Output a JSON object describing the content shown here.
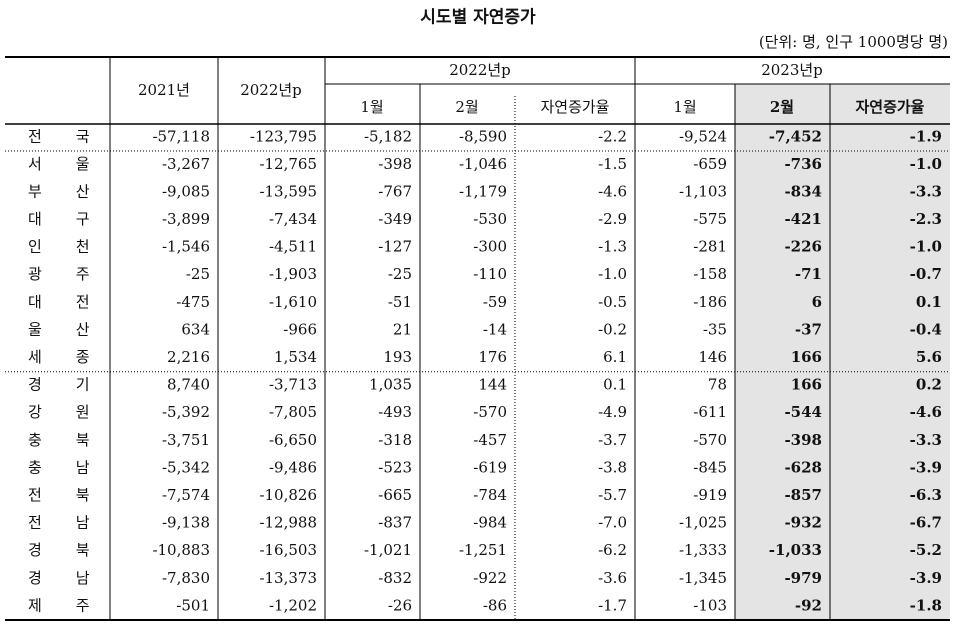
{
  "title": "시도별 자연증가",
  "unit_note": "(단위: 명, 인구 1000명당 명)",
  "table": {
    "header": {
      "region": "",
      "col_2021": "2021년",
      "col_2022": "2022년p",
      "group_2022": "2022년p",
      "group_2023": "2023년p",
      "sub_2022": [
        "1월",
        "2월",
        "자연증가율"
      ],
      "sub_2023": [
        "1월",
        "2월",
        "자연증가율"
      ]
    },
    "rows": [
      [
        "전국",
        "-57,118",
        "-123,795",
        "-5,182",
        "-8,590",
        "-2.2",
        "-9,524",
        "-7,452",
        "-1.9"
      ],
      [
        "서울",
        "-3,267",
        "-12,765",
        "-398",
        "-1,046",
        "-1.5",
        "-659",
        "-736",
        "-1.0"
      ],
      [
        "부산",
        "-9,085",
        "-13,595",
        "-767",
        "-1,179",
        "-4.6",
        "-1,103",
        "-834",
        "-3.3"
      ],
      [
        "대구",
        "-3,899",
        "-7,434",
        "-349",
        "-530",
        "-2.9",
        "-575",
        "-421",
        "-2.3"
      ],
      [
        "인천",
        "-1,546",
        "-4,511",
        "-127",
        "-300",
        "-1.3",
        "-281",
        "-226",
        "-1.0"
      ],
      [
        "광주",
        "-25",
        "-1,903",
        "-25",
        "-110",
        "-1.0",
        "-158",
        "-71",
        "-0.7"
      ],
      [
        "대전",
        "-475",
        "-1,610",
        "-51",
        "-59",
        "-0.5",
        "-186",
        "6",
        "0.1"
      ],
      [
        "울산",
        "634",
        "-966",
        "21",
        "-14",
        "-0.2",
        "-35",
        "-37",
        "-0.4"
      ],
      [
        "세종",
        "2,216",
        "1,534",
        "193",
        "176",
        "6.1",
        "146",
        "166",
        "5.6"
      ],
      [
        "경기",
        "8,740",
        "-3,713",
        "1,035",
        "144",
        "0.1",
        "78",
        "166",
        "0.2"
      ],
      [
        "강원",
        "-5,392",
        "-7,805",
        "-493",
        "-570",
        "-4.9",
        "-611",
        "-544",
        "-4.6"
      ],
      [
        "충북",
        "-3,751",
        "-6,650",
        "-318",
        "-457",
        "-3.7",
        "-570",
        "-398",
        "-3.3"
      ],
      [
        "충남",
        "-5,342",
        "-9,486",
        "-523",
        "-619",
        "-3.8",
        "-845",
        "-628",
        "-3.9"
      ],
      [
        "전북",
        "-7,574",
        "-10,826",
        "-665",
        "-784",
        "-5.7",
        "-919",
        "-857",
        "-6.3"
      ],
      [
        "전남",
        "-9,138",
        "-12,988",
        "-837",
        "-984",
        "-7.0",
        "-1,025",
        "-932",
        "-6.7"
      ],
      [
        "경북",
        "-10,883",
        "-16,503",
        "-1,021",
        "-1,251",
        "-6.2",
        "-1,333",
        "-1,033",
        "-5.2"
      ],
      [
        "경남",
        "-7,830",
        "-13,373",
        "-832",
        "-922",
        "-3.6",
        "-1,345",
        "-979",
        "-3.9"
      ],
      [
        "제주",
        "-501",
        "-1,202",
        "-26",
        "-86",
        "-1.7",
        "-103",
        "-92",
        "-1.8"
      ]
    ]
  }
}
